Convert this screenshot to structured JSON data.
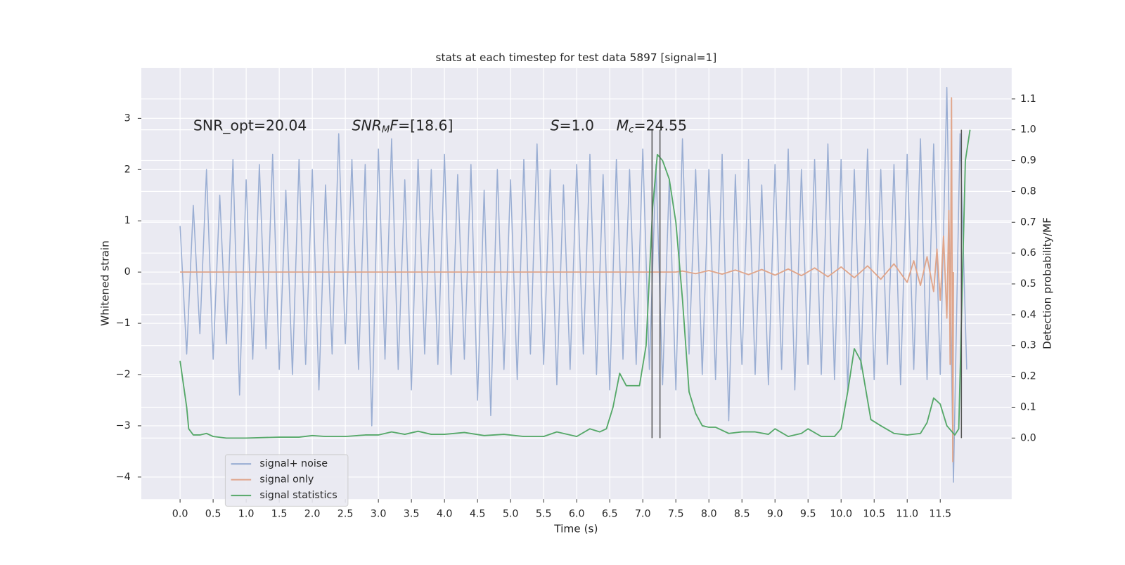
{
  "chart_data": {
    "type": "line",
    "title": "stats at each timestep for test data 5897 [signal=1]",
    "xlabel": "Time (s)",
    "ylabel": "Whitened strain",
    "y2label": "Detection probability/MF",
    "xlim": [
      -0.586,
      12.58
    ],
    "ylim": [
      -4.43,
      3.98
    ],
    "y2lim": [
      -0.198,
      1.2
    ],
    "xticks": [
      {
        "value": 0,
        "label": "0.0"
      },
      0.5,
      {
        "value": 1,
        "label": "1.0"
      },
      1.5,
      {
        "value": 2,
        "label": "2.0"
      },
      2.5,
      {
        "value": 3,
        "label": "3.0"
      },
      3.5,
      {
        "value": 4,
        "label": "4.0"
      },
      4.5,
      {
        "value": 5,
        "label": "5.0"
      },
      5.5,
      {
        "value": 6,
        "label": "6.0"
      },
      6.5,
      {
        "value": 7,
        "label": "7.0"
      },
      7.5,
      {
        "value": 8,
        "label": "8.0"
      },
      8.5,
      {
        "value": 9,
        "label": "9.0"
      },
      9.5,
      {
        "value": 10,
        "label": "10.0"
      },
      10.5,
      {
        "value": 11,
        "label": "11.0"
      },
      11.5
    ],
    "yticks": [
      {
        "value": -4,
        "label": "−4"
      },
      {
        "value": -3,
        "label": "−3"
      },
      {
        "value": -2,
        "label": "−2"
      },
      {
        "value": -1,
        "label": "−1"
      },
      0,
      1,
      2,
      3
    ],
    "y2ticks": [
      {
        "value": 0,
        "label": "0.0"
      },
      0.1,
      0.2,
      0.3,
      0.4,
      0.5,
      0.6,
      0.7,
      0.8,
      0.9,
      {
        "value": 1,
        "label": "1.0"
      },
      1.1
    ],
    "grid": true,
    "legend": "lower left",
    "annotations": [
      {
        "x": 0.2,
        "y": 2.85,
        "runs": [
          {
            "text": "SNR_opt=20.04",
            "style": "normal"
          }
        ]
      },
      {
        "x": 2.6,
        "y": 2.85,
        "runs": [
          {
            "text": "SNR",
            "style": "italic"
          },
          {
            "text": "M",
            "style": "italic-sub"
          },
          {
            "text": "F",
            "style": "italic"
          },
          {
            "text": "=[18.6]",
            "style": "normal"
          }
        ]
      },
      {
        "x": 5.6,
        "y": 2.85,
        "runs": [
          {
            "text": "S",
            "style": "italic"
          },
          {
            "text": "=1.0",
            "style": "normal"
          }
        ]
      },
      {
        "x": 6.6,
        "y": 2.85,
        "runs": [
          {
            "text": "M",
            "style": "italic"
          },
          {
            "text": "c",
            "style": "italic-sub"
          },
          {
            "text": "=24.55",
            "style": "normal"
          }
        ]
      }
    ],
    "vlines": {
      "x": [
        7.14,
        7.26,
        11.82
      ],
      "y2": [
        0,
        1
      ],
      "color": "#555555"
    },
    "series": [
      {
        "name": "signal+ noise",
        "color": "#9aaed3",
        "axis": "y",
        "x": [
          0,
          0.1,
          0.2,
          0.3,
          0.4,
          0.5,
          0.6,
          0.7,
          0.8,
          0.9,
          1,
          1.1,
          1.2,
          1.3,
          1.4,
          1.5,
          1.6,
          1.7,
          1.8,
          1.9,
          2,
          2.1,
          2.2,
          2.3,
          2.4,
          2.5,
          2.6,
          2.7,
          2.8,
          2.9,
          3,
          3.1,
          3.2,
          3.3,
          3.4,
          3.5,
          3.6,
          3.7,
          3.8,
          3.9,
          4,
          4.1,
          4.2,
          4.3,
          4.4,
          4.5,
          4.6,
          4.7,
          4.8,
          4.9,
          5,
          5.1,
          5.2,
          5.3,
          5.4,
          5.5,
          5.6,
          5.7,
          5.8,
          5.9,
          6,
          6.1,
          6.2,
          6.3,
          6.4,
          6.5,
          6.6,
          6.7,
          6.8,
          6.9,
          7,
          7.1,
          7.2,
          7.3,
          7.4,
          7.5,
          7.6,
          7.7,
          7.8,
          7.9,
          8,
          8.1,
          8.2,
          8.3,
          8.4,
          8.5,
          8.6,
          8.7,
          8.8,
          8.9,
          9,
          9.1,
          9.2,
          9.3,
          9.4,
          9.5,
          9.6,
          9.7,
          9.8,
          9.9,
          10,
          10.1,
          10.2,
          10.3,
          10.4,
          10.5,
          10.6,
          10.7,
          10.8,
          10.9,
          11,
          11.1,
          11.2,
          11.3,
          11.4,
          11.5,
          11.6,
          11.7,
          11.8,
          11.9
        ],
        "values": [
          0.9,
          -1.6,
          1.3,
          -1.2,
          2.0,
          -1.7,
          1.5,
          -1.4,
          2.2,
          -2.4,
          1.8,
          -1.7,
          2.1,
          -1.5,
          2.3,
          -1.9,
          1.6,
          -2.0,
          2.2,
          -1.8,
          2.0,
          -2.3,
          1.7,
          -1.6,
          2.7,
          -1.4,
          2.2,
          -1.9,
          2.1,
          -3.0,
          2.4,
          -1.7,
          2.6,
          -1.9,
          1.8,
          -2.3,
          2.2,
          -1.6,
          2.0,
          -1.8,
          2.3,
          -2.0,
          1.9,
          -1.7,
          2.1,
          -2.5,
          1.6,
          -2.8,
          2.0,
          -1.9,
          1.8,
          -2.1,
          2.2,
          -1.6,
          2.5,
          -1.8,
          2.0,
          -2.2,
          1.7,
          -1.9,
          2.1,
          -1.6,
          2.3,
          -2.0,
          1.9,
          -2.3,
          2.2,
          -1.7,
          2.0,
          -1.8,
          2.4,
          -1.9,
          2.1,
          -2.2,
          1.8,
          -2.3,
          2.6,
          -1.6,
          2.0,
          -2.0,
          2.0,
          -2.1,
          2.3,
          -2.9,
          1.9,
          -1.8,
          2.2,
          -2.0,
          1.7,
          -2.2,
          2.1,
          -1.9,
          2.4,
          -2.3,
          2.0,
          -1.8,
          2.2,
          -2.0,
          2.5,
          -2.1,
          2.2,
          -2.3,
          2.0,
          -1.9,
          2.4,
          -2.1,
          2.0,
          -1.8,
          2.1,
          -2.2,
          2.3,
          -1.9,
          2.6,
          -2.1,
          2.5,
          -2.0,
          3.6,
          -4.1,
          2.7,
          -1.9
        ]
      },
      {
        "name": "signal only",
        "color": "#e0a58a",
        "axis": "y",
        "x": [
          0,
          7.5,
          7.6,
          7.8,
          8.0,
          8.2,
          8.4,
          8.6,
          8.8,
          9.0,
          9.2,
          9.4,
          9.6,
          9.8,
          10.0,
          10.2,
          10.4,
          10.6,
          10.8,
          11.0,
          11.1,
          11.2,
          11.3,
          11.4,
          11.45,
          11.5,
          11.55,
          11.6,
          11.63,
          11.65,
          11.67,
          11.69,
          11.7
        ],
        "values": [
          0,
          0,
          0.02,
          -0.03,
          0.03,
          -0.04,
          0.04,
          -0.05,
          0.05,
          -0.06,
          0.06,
          -0.07,
          0.08,
          -0.09,
          0.1,
          -0.11,
          0.12,
          -0.14,
          0.16,
          -0.2,
          0.22,
          -0.26,
          0.3,
          -0.38,
          0.45,
          -0.55,
          0.7,
          -0.9,
          1.2,
          -1.8,
          3.4,
          -3.7,
          0
        ]
      },
      {
        "name": "signal statistics",
        "color": "#55a868",
        "axis": "y2",
        "x": [
          0,
          0.1,
          0.13,
          0.2,
          0.3,
          0.4,
          0.5,
          0.7,
          1.0,
          1.5,
          1.8,
          2.0,
          2.2,
          2.5,
          2.8,
          3.0,
          3.2,
          3.4,
          3.6,
          3.8,
          4.0,
          4.3,
          4.6,
          4.9,
          5.2,
          5.5,
          5.7,
          6.0,
          6.2,
          6.35,
          6.45,
          6.55,
          6.65,
          6.75,
          6.85,
          6.95,
          7.05,
          7.15,
          7.22,
          7.3,
          7.4,
          7.5,
          7.6,
          7.7,
          7.8,
          7.9,
          8.0,
          8.1,
          8.3,
          8.5,
          8.7,
          8.9,
          9.0,
          9.2,
          9.4,
          9.5,
          9.7,
          9.9,
          10.0,
          10.1,
          10.2,
          10.3,
          10.45,
          10.6,
          10.8,
          11.0,
          11.2,
          11.3,
          11.4,
          11.5,
          11.6,
          11.72,
          11.78,
          11.88,
          11.95
        ],
        "values": [
          0.25,
          0.1,
          0.03,
          0.01,
          0.01,
          0.015,
          0.005,
          0.0,
          0.0,
          0.003,
          0.003,
          0.008,
          0.005,
          0.005,
          0.01,
          0.01,
          0.02,
          0.012,
          0.022,
          0.012,
          0.012,
          0.018,
          0.008,
          0.012,
          0.005,
          0.005,
          0.02,
          0.005,
          0.03,
          0.02,
          0.03,
          0.1,
          0.21,
          0.17,
          0.17,
          0.17,
          0.3,
          0.75,
          0.92,
          0.9,
          0.84,
          0.7,
          0.45,
          0.15,
          0.08,
          0.04,
          0.035,
          0.035,
          0.015,
          0.02,
          0.02,
          0.012,
          0.03,
          0.005,
          0.015,
          0.03,
          0.005,
          0.005,
          0.03,
          0.15,
          0.29,
          0.25,
          0.06,
          0.04,
          0.015,
          0.01,
          0.015,
          0.05,
          0.13,
          0.11,
          0.04,
          0.01,
          0.03,
          0.9,
          1.0
        ]
      }
    ]
  }
}
